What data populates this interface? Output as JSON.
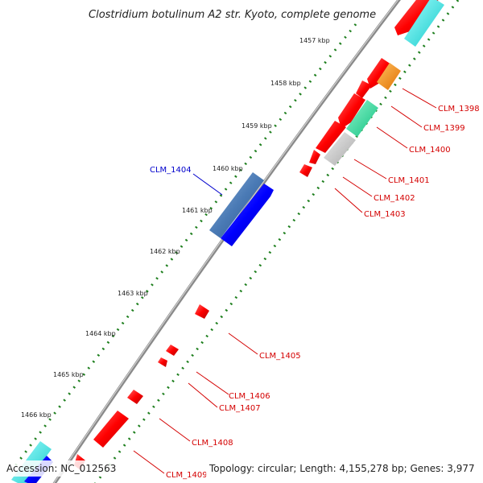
{
  "title": "Clostridium botulinum A2 str. Kyoto, complete genome",
  "footer": {
    "accession": "Accession: NC_012563",
    "summary": "Topology: circular; Length: 4,155,278 bp; Genes: 3,977"
  },
  "ticks": [
    {
      "label": "1457 kbp",
      "t": 0.04
    },
    {
      "label": "1458 kbp",
      "t": 0.133
    },
    {
      "label": "1459 kbp",
      "t": 0.226
    },
    {
      "label": "1460 kbp",
      "t": 0.319
    },
    {
      "label": "1461 kbp",
      "t": 0.412
    },
    {
      "label": "1462 kbp",
      "t": 0.505
    },
    {
      "label": "1463 kbp",
      "t": 0.598
    },
    {
      "label": "1464 kbp",
      "t": 0.691
    },
    {
      "label": "1465 kbp",
      "t": 0.784
    },
    {
      "label": "1466 kbp",
      "t": 0.877
    }
  ],
  "gene_labels": [
    {
      "text": "CLM_1398",
      "color": "#d40000"
    },
    {
      "text": "CLM_1399",
      "color": "#d40000"
    },
    {
      "text": "CLM_1400",
      "color": "#d40000"
    },
    {
      "text": "CLM_1401",
      "color": "#d40000"
    },
    {
      "text": "CLM_1402",
      "color": "#d40000"
    },
    {
      "text": "CLM_1403",
      "color": "#d40000"
    },
    {
      "text": "CLM_1404",
      "color": "#0000cc"
    },
    {
      "text": "CLM_1405",
      "color": "#d40000"
    },
    {
      "text": "CLM_1406",
      "color": "#d40000"
    },
    {
      "text": "CLM_1407",
      "color": "#d40000"
    },
    {
      "text": "CLM_1408",
      "color": "#d40000"
    },
    {
      "text": "CLM_1409",
      "color": "#d40000"
    }
  ],
  "colors": {
    "backbone": "#8a8a8a",
    "tick_dots": "#1e7f1e",
    "forward_gene": "#ff0000",
    "reverse_gene": "#0000ff",
    "steel_gene": "#4a7ab5",
    "orange_gene": "#ff8c00",
    "green_gene": "#22dd99",
    "grey_gene": "#c8c8c8",
    "cyan_gene": "#22dddd"
  }
}
